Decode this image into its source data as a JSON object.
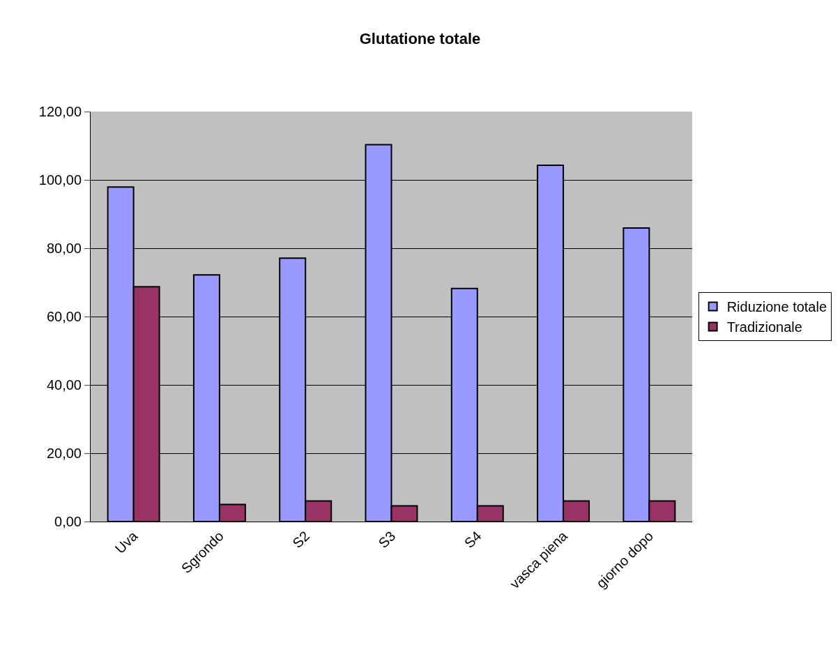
{
  "chart_data": {
    "type": "bar",
    "title": "Glutatione totale",
    "categories": [
      "Uva",
      "Sgrondo",
      "S2",
      "S3",
      "S4",
      "vasca piena",
      "giorno dopo"
    ],
    "series": [
      {
        "name": "Riduzione totale",
        "color": "#9999ff",
        "values": [
          97.9,
          72.2,
          77.1,
          110.3,
          68.2,
          104.3,
          85.9
        ]
      },
      {
        "name": "Tradizionale",
        "color": "#993366",
        "values": [
          68.7,
          5.0,
          6.0,
          4.6,
          4.6,
          6.0,
          6.0
        ]
      }
    ],
    "ylim": [
      0,
      120
    ],
    "yticks": [
      {
        "value": 0,
        "label": "0,00"
      },
      {
        "value": 20,
        "label": "20,00"
      },
      {
        "value": 40,
        "label": "40,00"
      },
      {
        "value": 60,
        "label": "60,00"
      },
      {
        "value": 80,
        "label": "80,00"
      },
      {
        "value": 100,
        "label": "100,00"
      },
      {
        "value": 120,
        "label": "120,00"
      }
    ],
    "grid": "y",
    "legend": "right"
  }
}
